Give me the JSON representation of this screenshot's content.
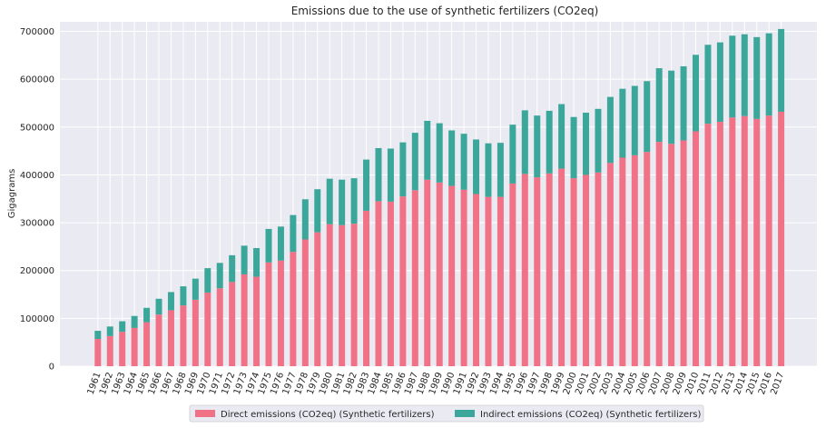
{
  "chart_data": {
    "type": "bar",
    "stacked": true,
    "title": "Emissions due to the use of synthetic fertilizers (CO2eq)",
    "xlabel": "",
    "ylabel": "Gigagrams",
    "ylim": [
      0,
      720000
    ],
    "yticks": [
      0,
      100000,
      200000,
      300000,
      400000,
      500000,
      600000,
      700000
    ],
    "grid": true,
    "legend_position": "bottom-center",
    "categories": [
      "1961",
      "1962",
      "1963",
      "1964",
      "1965",
      "1966",
      "1967",
      "1968",
      "1969",
      "1970",
      "1971",
      "1972",
      "1973",
      "1974",
      "1975",
      "1976",
      "1977",
      "1978",
      "1979",
      "1980",
      "1981",
      "1982",
      "1983",
      "1984",
      "1985",
      "1986",
      "1987",
      "1988",
      "1989",
      "1990",
      "1991",
      "1992",
      "1993",
      "1994",
      "1995",
      "1996",
      "1997",
      "1998",
      "1999",
      "2000",
      "2001",
      "2002",
      "2003",
      "2004",
      "2005",
      "2006",
      "2007",
      "2008",
      "2009",
      "2010",
      "2011",
      "2012",
      "2013",
      "2014",
      "2015",
      "2016",
      "2017"
    ],
    "series": [
      {
        "name": "Direct emissions (CO2eq) (Synthetic fertilizers)",
        "color": "#f17186",
        "values": [
          57000,
          63000,
          72000,
          80000,
          92000,
          108000,
          117000,
          127000,
          139000,
          154000,
          163000,
          176000,
          192000,
          187000,
          217000,
          221000,
          239000,
          265000,
          280000,
          297000,
          295000,
          298000,
          325000,
          345000,
          344000,
          355000,
          368000,
          390000,
          384000,
          377000,
          369000,
          360000,
          354000,
          354000,
          382000,
          402000,
          395000,
          403000,
          413000,
          393000,
          400000,
          405000,
          425000,
          436000,
          441000,
          448000,
          469000,
          465000,
          472000,
          491000,
          507000,
          511000,
          520000,
          523000,
          517000,
          524000,
          532000
        ]
      },
      {
        "name": "Indirect emissions (CO2eq) (Synthetic fertilizers)",
        "color": "#3ba69a",
        "values": [
          17000,
          20000,
          22000,
          25000,
          30000,
          33000,
          38000,
          40000,
          44000,
          51000,
          53000,
          56000,
          60000,
          60000,
          70000,
          71000,
          77000,
          84000,
          90000,
          95000,
          95000,
          95000,
          107000,
          111000,
          111000,
          113000,
          120000,
          123000,
          124000,
          116000,
          117000,
          114000,
          112000,
          113000,
          123000,
          133000,
          129000,
          131000,
          135000,
          128000,
          130000,
          133000,
          138000,
          144000,
          145000,
          148000,
          154000,
          153000,
          155000,
          160000,
          165000,
          166000,
          171000,
          171000,
          171000,
          172000,
          173000
        ]
      }
    ]
  }
}
